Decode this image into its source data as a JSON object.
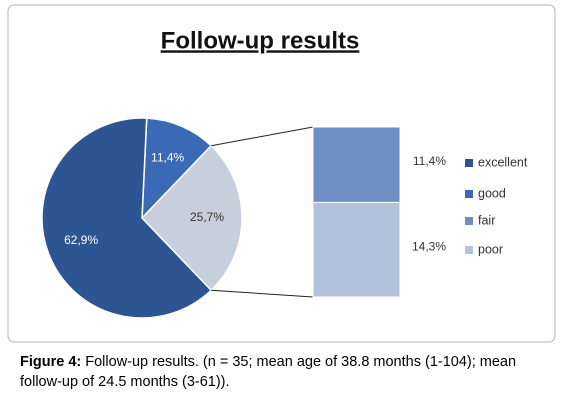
{
  "chart_data": {
    "type": "pie-of-pie",
    "title": "Follow-up results",
    "categories": [
      "excellent",
      "good",
      "fair",
      "poor"
    ],
    "values": [
      62.9,
      11.4,
      11.4,
      14.3
    ],
    "value_labels": [
      "62,9%",
      "11,4%",
      "11,4%",
      "14,3%"
    ],
    "colors": [
      "#2c5592",
      "#3a69b6",
      "#6d8fc4",
      "#b3c2dc"
    ],
    "secondary_count": 2,
    "other_value": 25.7,
    "other_value_label": "25,7%",
    "other_color": "#c8cfdc",
    "legend": "right"
  },
  "caption": {
    "label": "Figure 4:",
    "text": "Follow-up results. (n = 35; mean age of 38.8 months (1-104); mean follow-up of 24.5 months (3-61))."
  }
}
